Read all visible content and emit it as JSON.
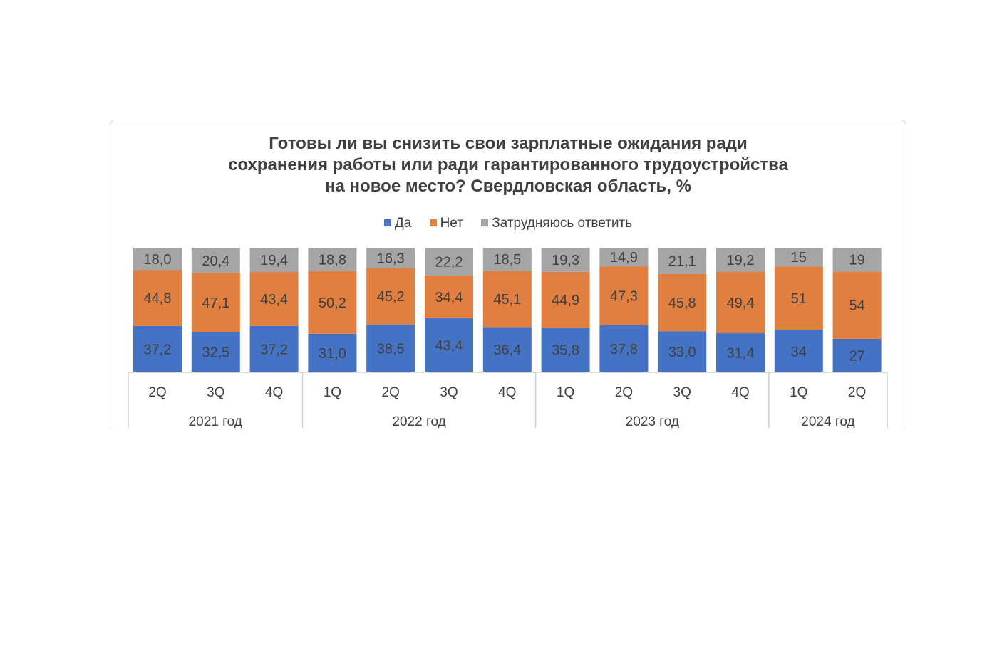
{
  "chart_data": {
    "type": "bar",
    "stacked": true,
    "title_lines": [
      "Готовы ли вы снизить свои зарплатные ожидания ради",
      "сохранения работы или ради гарантированного трудоустройства",
      "на новое место? Свердловская область, %"
    ],
    "legend_position": "top",
    "grid": false,
    "ylim": [
      0,
      100
    ],
    "categories": [
      "2Q",
      "3Q",
      "4Q",
      "1Q",
      "2Q",
      "3Q",
      "4Q",
      "1Q",
      "2Q",
      "3Q",
      "4Q",
      "1Q",
      "2Q"
    ],
    "groups": [
      {
        "label": "2021 год",
        "count": 3
      },
      {
        "label": "2022 год",
        "count": 4
      },
      {
        "label": "2023 год",
        "count": 4
      },
      {
        "label": "2024 год",
        "count": 2
      }
    ],
    "series": [
      {
        "name": "Да",
        "color": "#4472C4",
        "values": [
          37.2,
          32.5,
          37.2,
          31.0,
          38.5,
          43.4,
          36.4,
          35.8,
          37.8,
          33.0,
          31.4,
          34,
          27
        ],
        "labels": [
          "37,2",
          "32,5",
          "37,2",
          "31,0",
          "38,5",
          "43,4",
          "36,4",
          "35,8",
          "37,8",
          "33,0",
          "31,4",
          "34",
          "27"
        ]
      },
      {
        "name": "Нет",
        "color": "#E07F3F",
        "values": [
          44.8,
          47.1,
          43.4,
          50.2,
          45.2,
          34.4,
          45.1,
          44.9,
          47.3,
          45.8,
          49.4,
          51,
          54
        ],
        "labels": [
          "44,8",
          "47,1",
          "43,4",
          "50,2",
          "45,2",
          "34,4",
          "45,1",
          "44,9",
          "47,3",
          "45,8",
          "49,4",
          "51",
          "54"
        ]
      },
      {
        "name": "Затрудняюсь ответить",
        "color": "#A5A5A5",
        "values": [
          18.0,
          20.4,
          19.4,
          18.8,
          16.3,
          22.2,
          18.5,
          19.3,
          14.9,
          21.1,
          19.2,
          15,
          19
        ],
        "labels": [
          "18,0",
          "20,4",
          "19,4",
          "18,8",
          "16,3",
          "22,2",
          "18,5",
          "19,3",
          "14,9",
          "21,1",
          "19,2",
          "15",
          "19"
        ]
      }
    ]
  }
}
